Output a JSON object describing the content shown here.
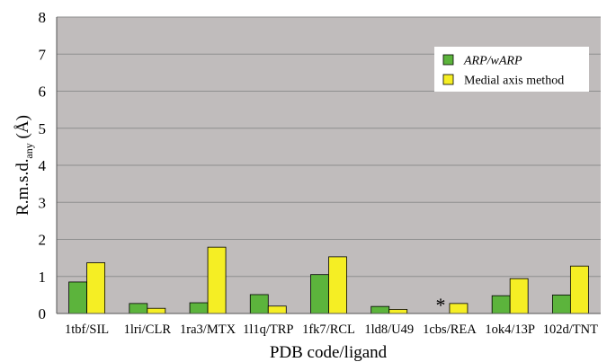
{
  "chart_data": {
    "type": "bar",
    "xlabel": "PDB code/ligand",
    "ylabel_main": "R.m.s.d.",
    "ylabel_sub": "any",
    "ylabel_unit": " (Å)",
    "ylim": [
      0,
      8
    ],
    "yticks": [
      0,
      1,
      2,
      3,
      4,
      5,
      6,
      7,
      8
    ],
    "grid": true,
    "legend_position": "top-right",
    "categories": [
      "1tbf/SIL",
      "1lri/CLR",
      "1ra3/MTX",
      "1l1q/TRP",
      "1fk7/RCL",
      "1ld8/U49",
      "1cbs/REA",
      "1ok4/13P",
      "102d/TNT"
    ],
    "series": [
      {
        "name": "ARP/wARP",
        "color": "#5cb43c",
        "values": [
          0.85,
          0.27,
          0.29,
          0.51,
          1.05,
          0.19,
          null,
          0.48,
          0.5
        ]
      },
      {
        "name": "Medial axis method",
        "color": "#f5ee24",
        "values": [
          1.37,
          0.14,
          1.79,
          0.2,
          1.53,
          0.11,
          0.27,
          0.94,
          1.28
        ]
      }
    ],
    "missing_marker": "*",
    "missing_marker_category": "1cbs/REA",
    "plot_background": "#c0bcbc",
    "grid_color": "#8e8e8e"
  }
}
